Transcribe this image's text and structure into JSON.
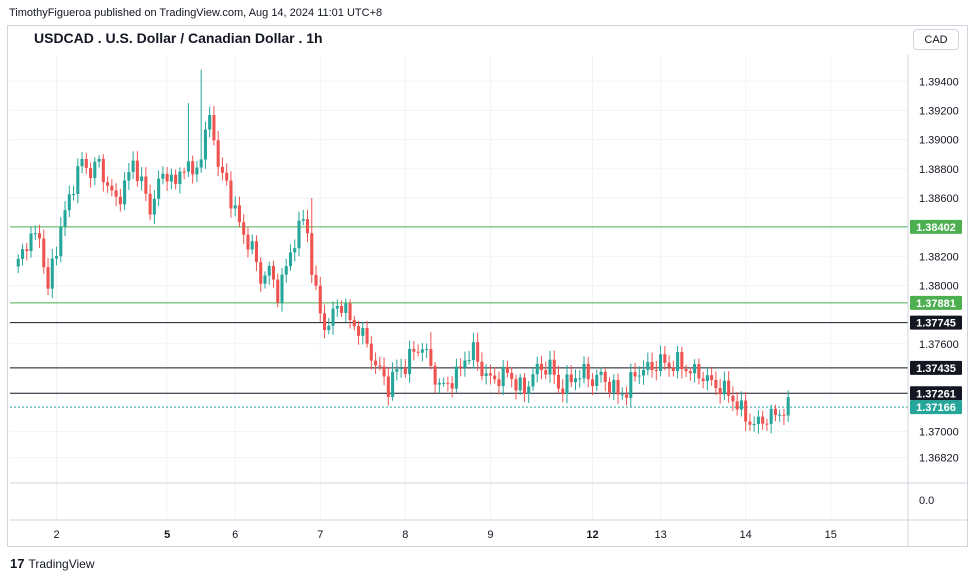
{
  "header": {
    "publisher": "TimothyFigueroa published on TradingView.com, Aug 14, 2024 11:01 UTC+8",
    "currency_button": "CAD"
  },
  "footer": {
    "brand": "TradingView",
    "brand_mark": "17"
  },
  "colors": {
    "up": "#26a69a",
    "down": "#ef5350",
    "grid": "#f0f3fa",
    "green_level": "#4caf50",
    "black_level": "#131722",
    "last_price": "#26a69a"
  },
  "chart_data": {
    "type": "candlestick",
    "title": "USDCAD . U.S. Dollar / Canadian Dollar . 1h",
    "symbol": "USDCAD",
    "timeframe": "1h",
    "ylim": [
      1.3668,
      1.3958
    ],
    "y_ticks": [
      "1.39400",
      "1.39200",
      "1.39000",
      "1.38800",
      "1.38600",
      "1.38200",
      "1.38000",
      "1.37600",
      "1.37000",
      "1.36820"
    ],
    "y_tick_values": [
      1.394,
      1.392,
      1.39,
      1.388,
      1.386,
      1.382,
      1.38,
      1.376,
      1.37,
      1.3682
    ],
    "x_ticks": [
      {
        "label": "2",
        "bold": false
      },
      {
        "label": "5",
        "bold": true
      },
      {
        "label": "6",
        "bold": false
      },
      {
        "label": "7",
        "bold": false
      },
      {
        "label": "8",
        "bold": false
      },
      {
        "label": "9",
        "bold": false
      },
      {
        "label": "12",
        "bold": true
      },
      {
        "label": "13",
        "bold": false
      },
      {
        "label": "14",
        "bold": false
      },
      {
        "label": "15",
        "bold": false
      }
    ],
    "x_tick_index": [
      10,
      36,
      52,
      72,
      92,
      112,
      136,
      152,
      172,
      192
    ],
    "bar_count": 197,
    "extra_pane_tick": "0.0",
    "levels": [
      {
        "label": "1.38402",
        "value": 1.38402,
        "type": "green"
      },
      {
        "label": "1.37881",
        "value": 1.37881,
        "type": "green"
      },
      {
        "label": "1.37745",
        "value": 1.37745,
        "type": "black"
      },
      {
        "label": "1.37435",
        "value": 1.37435,
        "type": "black"
      },
      {
        "label": "1.37261",
        "value": 1.37261,
        "type": "black"
      },
      {
        "label": "1.37166",
        "value": 1.37166,
        "type": "last"
      }
    ],
    "price_anchors": [
      [
        0,
        1.381
      ],
      [
        3,
        1.383
      ],
      [
        6,
        1.3835
      ],
      [
        8,
        1.3795
      ],
      [
        9,
        1.3815
      ],
      [
        12,
        1.385
      ],
      [
        14,
        1.387
      ],
      [
        16,
        1.3885
      ],
      [
        18,
        1.3878
      ],
      [
        20,
        1.3884
      ],
      [
        22,
        1.3868
      ],
      [
        24,
        1.3858
      ],
      [
        26,
        1.3868
      ],
      [
        28,
        1.3885
      ],
      [
        30,
        1.387
      ],
      [
        32,
        1.3852
      ],
      [
        34,
        1.387
      ],
      [
        36,
        1.3878
      ],
      [
        38,
        1.3868
      ],
      [
        40,
        1.3885
      ],
      [
        42,
        1.3875
      ],
      [
        44,
        1.389
      ],
      [
        46,
        1.3915
      ],
      [
        47,
        1.3905
      ],
      [
        48,
        1.388
      ],
      [
        50,
        1.387
      ],
      [
        52,
        1.385
      ],
      [
        54,
        1.3835
      ],
      [
        56,
        1.3825
      ],
      [
        58,
        1.3805
      ],
      [
        60,
        1.381
      ],
      [
        62,
        1.3795
      ],
      [
        64,
        1.3812
      ],
      [
        66,
        1.3832
      ],
      [
        68,
        1.3845
      ],
      [
        69,
        1.3838
      ],
      [
        70,
        1.381
      ],
      [
        72,
        1.378
      ],
      [
        74,
        1.377
      ],
      [
        75,
        1.3782
      ],
      [
        77,
        1.3788
      ],
      [
        79,
        1.3776
      ],
      [
        81,
        1.377
      ],
      [
        83,
        1.376
      ],
      [
        85,
        1.3745
      ],
      [
        87,
        1.3737
      ],
      [
        88,
        1.373
      ],
      [
        90,
        1.3742
      ],
      [
        92,
        1.3745
      ],
      [
        94,
        1.3755
      ],
      [
        96,
        1.3758
      ],
      [
        98,
        1.3745
      ],
      [
        100,
        1.373
      ],
      [
        102,
        1.3733
      ],
      [
        104,
        1.3738
      ],
      [
        106,
        1.375
      ],
      [
        108,
        1.3755
      ],
      [
        110,
        1.3742
      ],
      [
        112,
        1.3735
      ],
      [
        114,
        1.3737
      ],
      [
        116,
        1.374
      ],
      [
        118,
        1.3733
      ],
      [
        120,
        1.3727
      ],
      [
        122,
        1.374
      ],
      [
        124,
        1.3743
      ],
      [
        126,
        1.3745
      ],
      [
        128,
        1.373
      ],
      [
        130,
        1.3732
      ],
      [
        132,
        1.3738
      ],
      [
        134,
        1.374
      ],
      [
        136,
        1.3735
      ],
      [
        138,
        1.3738
      ],
      [
        140,
        1.3732
      ],
      [
        142,
        1.3726
      ],
      [
        144,
        1.3727
      ],
      [
        146,
        1.374
      ],
      [
        148,
        1.3742
      ],
      [
        150,
        1.3744
      ],
      [
        152,
        1.3748
      ],
      [
        154,
        1.3745
      ],
      [
        156,
        1.3747
      ],
      [
        158,
        1.3743
      ],
      [
        160,
        1.374
      ],
      [
        162,
        1.3738
      ],
      [
        164,
        1.3733
      ],
      [
        166,
        1.373
      ],
      [
        168,
        1.3726
      ],
      [
        170,
        1.3718
      ],
      [
        172,
        1.371
      ],
      [
        174,
        1.3704
      ],
      [
        176,
        1.3708
      ],
      [
        178,
        1.371
      ],
      [
        180,
        1.3713
      ],
      [
        182,
        1.3716
      ]
    ],
    "spikes": [
      {
        "bar": 44,
        "high": 1.3948
      },
      {
        "bar": 41,
        "high": 1.3925
      },
      {
        "bar": 70,
        "high": 1.386
      },
      {
        "bar": 98,
        "high": 1.3768
      }
    ]
  }
}
